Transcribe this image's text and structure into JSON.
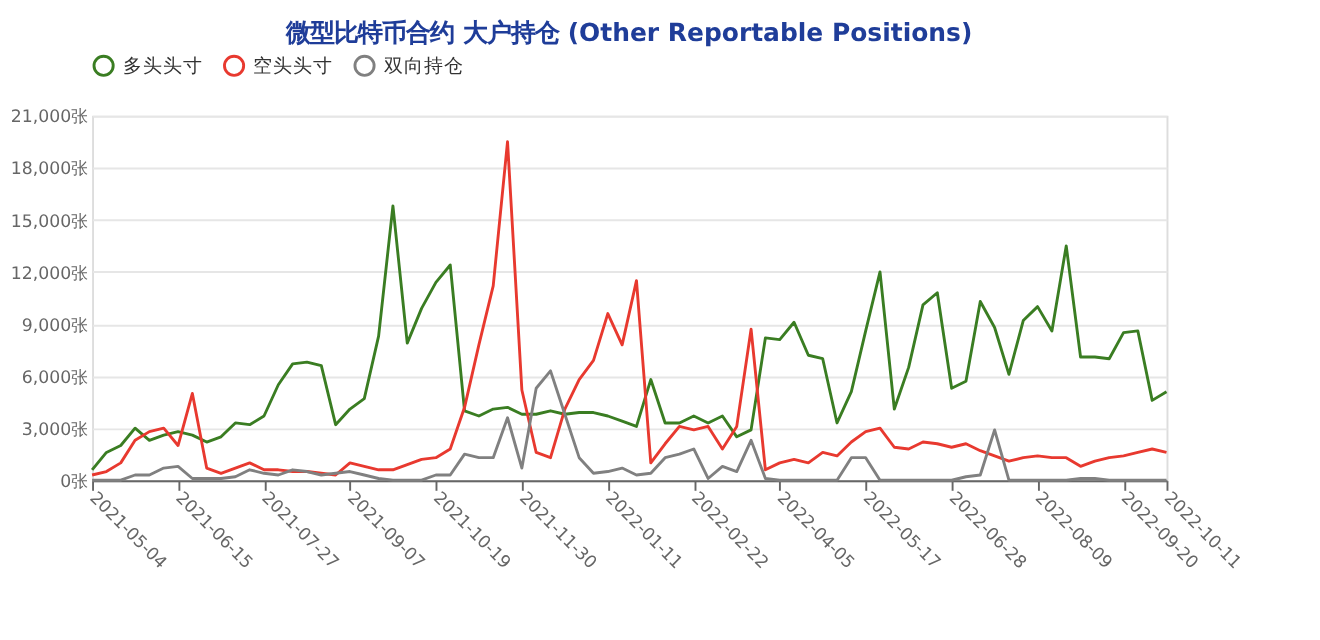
{
  "chart_data": {
    "type": "line",
    "title": "微型比特币合约 大户持仓 (Other Reportable Positions)",
    "x": [
      "2021-05-04",
      "2021-05-11",
      "2021-05-18",
      "2021-05-25",
      "2021-06-01",
      "2021-06-08",
      "2021-06-15",
      "2021-06-22",
      "2021-06-29",
      "2021-07-06",
      "2021-07-13",
      "2021-07-20",
      "2021-07-27",
      "2021-08-03",
      "2021-08-10",
      "2021-08-17",
      "2021-08-24",
      "2021-08-31",
      "2021-09-07",
      "2021-09-14",
      "2021-09-21",
      "2021-09-28",
      "2021-10-05",
      "2021-10-12",
      "2021-10-19",
      "2021-10-26",
      "2021-11-02",
      "2021-11-09",
      "2021-11-16",
      "2021-11-23",
      "2021-11-30",
      "2021-12-07",
      "2021-12-14",
      "2021-12-21",
      "2021-12-28",
      "2022-01-04",
      "2022-01-11",
      "2022-01-18",
      "2022-01-25",
      "2022-02-01",
      "2022-02-08",
      "2022-02-15",
      "2022-02-22",
      "2022-03-01",
      "2022-03-08",
      "2022-03-15",
      "2022-03-22",
      "2022-03-29",
      "2022-04-05",
      "2022-04-12",
      "2022-04-19",
      "2022-04-26",
      "2022-05-03",
      "2022-05-10",
      "2022-05-17",
      "2022-05-24",
      "2022-05-31",
      "2022-06-07",
      "2022-06-14",
      "2022-06-21",
      "2022-06-28",
      "2022-07-05",
      "2022-07-12",
      "2022-07-19",
      "2022-07-26",
      "2022-08-02",
      "2022-08-09",
      "2022-08-16",
      "2022-08-23",
      "2022-08-30",
      "2022-09-06",
      "2022-09-13",
      "2022-09-20",
      "2022-09-27",
      "2022-10-04",
      "2022-10-11"
    ],
    "series": [
      {
        "name": "多头头寸",
        "color": "#3a7d22",
        "values": [
          600,
          1600,
          2000,
          3000,
          2300,
          2600,
          2800,
          2600,
          2200,
          2500,
          3300,
          3200,
          3700,
          5500,
          6700,
          6800,
          6600,
          3200,
          4100,
          4700,
          8300,
          15800,
          7900,
          9900,
          11400,
          12400,
          4000,
          3700,
          4100,
          4200,
          3800,
          3800,
          4000,
          3800,
          3900,
          3900,
          3700,
          3400,
          3100,
          5800,
          3300,
          3300,
          3700,
          3300,
          3700,
          2500,
          2900,
          8200,
          8100,
          9100,
          7200,
          7000,
          3300,
          5100,
          8600,
          12000,
          4100,
          6500,
          10100,
          10800,
          5300,
          5700,
          10300,
          8800,
          6100,
          9200,
          10000,
          8600,
          13500,
          7100,
          7100,
          7000,
          8500,
          8600,
          4600,
          5100
        ]
      },
      {
        "name": "空头头寸",
        "color": "#e8392f",
        "values": [
          300,
          500,
          1000,
          2300,
          2800,
          3000,
          2000,
          5000,
          700,
          400,
          700,
          1000,
          600,
          600,
          500,
          500,
          400,
          300,
          1000,
          800,
          600,
          600,
          900,
          1200,
          1300,
          1800,
          4200,
          7800,
          11200,
          19500,
          5200,
          1600,
          1300,
          4100,
          5800,
          6900,
          9600,
          7800,
          11500,
          1000,
          2100,
          3100,
          2900,
          3100,
          1800,
          3100,
          8700,
          600,
          1000,
          1200,
          1000,
          1600,
          1400,
          2200,
          2800,
          3000,
          1900,
          1800,
          2200,
          2100,
          1900,
          2100,
          1700,
          1400,
          1100,
          1300,
          1400,
          1300,
          1300,
          800,
          1100,
          1300,
          1400,
          1600,
          1800,
          1600
        ]
      },
      {
        "name": "双向持仓",
        "color": "#808080",
        "values": [
          0,
          0,
          0,
          300,
          300,
          700,
          800,
          100,
          100,
          100,
          200,
          600,
          400,
          300,
          600,
          500,
          300,
          400,
          500,
          300,
          100,
          0,
          0,
          0,
          300,
          300,
          1500,
          1300,
          1300,
          3600,
          700,
          5300,
          6300,
          3800,
          1300,
          400,
          500,
          700,
          300,
          400,
          1300,
          1500,
          1800,
          100,
          800,
          500,
          2300,
          100,
          0,
          0,
          0,
          0,
          0,
          1300,
          1300,
          0,
          0,
          0,
          0,
          0,
          0,
          200,
          300,
          2900,
          0,
          0,
          0,
          0,
          0,
          100,
          100,
          0,
          0,
          0,
          0,
          0
        ]
      }
    ],
    "xlim": [
      "2021-05-04",
      "2022-10-11"
    ],
    "xticks": [
      "2021-05-04",
      "2021-06-15",
      "2021-07-27",
      "2021-09-07",
      "2021-10-19",
      "2021-11-30",
      "2022-01-11",
      "2022-02-22",
      "2022-04-05",
      "2022-05-17",
      "2022-06-28",
      "2022-08-09",
      "2022-09-20",
      "2022-10-11"
    ],
    "ylim": [
      0,
      21000
    ],
    "yticks": [
      {
        "value": 0,
        "label": "0张"
      },
      {
        "value": 3000,
        "label": "3,000张"
      },
      {
        "value": 6000,
        "label": "6,000张"
      },
      {
        "value": 9000,
        "label": "9,000张"
      },
      {
        "value": 12000,
        "label": "12,000张"
      },
      {
        "value": 15000,
        "label": "15,000张"
      },
      {
        "value": 18000,
        "label": "18,000张"
      },
      {
        "value": 21000,
        "label": "21,000张"
      }
    ],
    "grid": "y",
    "legend": "top",
    "marker": "none",
    "line_style": "solid"
  }
}
